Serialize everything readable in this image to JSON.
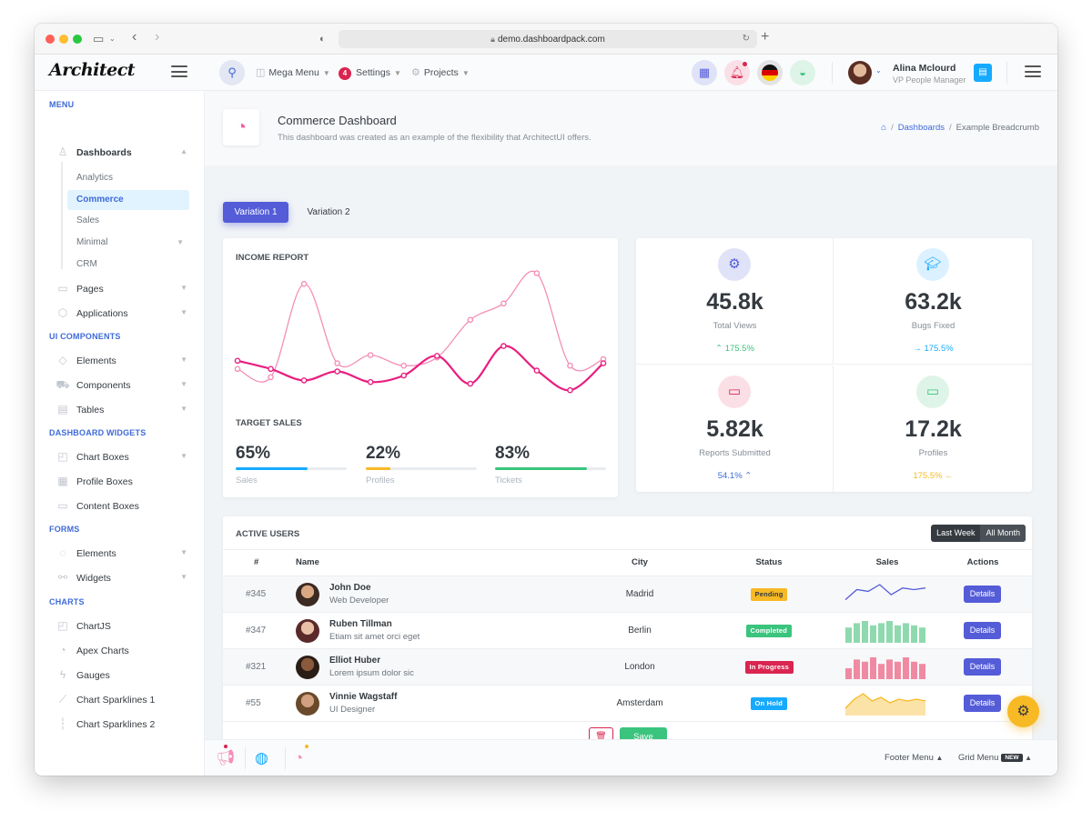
{
  "browser": {
    "url": "demo.dashboardpack.com"
  },
  "header": {
    "logo": "Architect",
    "nav": [
      {
        "label": "Mega Menu"
      },
      {
        "label": "Settings",
        "badge": "4"
      },
      {
        "label": "Projects"
      }
    ],
    "user": {
      "name": "Alina Mclourd",
      "role": "VP People Manager"
    }
  },
  "sidebar": {
    "sections": [
      {
        "heading": "Menu"
      },
      {
        "heading": "UI Components"
      },
      {
        "heading": "Dashboard Widgets"
      },
      {
        "heading": "Forms"
      },
      {
        "heading": "Charts"
      }
    ],
    "dashboards": "Dashboards",
    "sub": [
      "Analytics",
      "Commerce",
      "Sales",
      "Minimal",
      "CRM"
    ],
    "items": {
      "pages": "Pages",
      "applications": "Applications",
      "elements": "Elements",
      "components": "Components",
      "tables": "Tables",
      "chart_boxes": "Chart Boxes",
      "profile_boxes": "Profile Boxes",
      "content_boxes": "Content Boxes",
      "form_elements": "Elements",
      "widgets": "Widgets",
      "chartjs": "ChartJS",
      "apex": "Apex Charts",
      "gauges": "Gauges",
      "sparklines1": "Chart Sparklines 1",
      "sparklines2": "Chart Sparklines 2"
    }
  },
  "page": {
    "title": "Commerce Dashboard",
    "subtitle": "This dashboard was created as an example of the flexibility that ArchitectUI offers.",
    "breadcrumb": [
      "Dashboards",
      "Example Breadcrumb"
    ],
    "tabs": [
      "Variation 1",
      "Variation 2"
    ]
  },
  "income": {
    "title": "Income Report",
    "target_title": "Target Sales",
    "targets": [
      {
        "value": "65%",
        "fill": 0.65,
        "label": "Sales",
        "color": "#16aaff"
      },
      {
        "value": "22%",
        "fill": 0.22,
        "label": "Profiles",
        "color": "#f7b924"
      },
      {
        "value": "83%",
        "fill": 0.83,
        "label": "Tickets",
        "color": "#3ac47d"
      }
    ]
  },
  "chart_data": {
    "type": "line",
    "series": [
      {
        "color": "#f48fb8",
        "values": [
          38,
          28,
          142,
          45,
          55,
          42,
          52,
          98,
          118,
          155,
          42,
          50
        ]
      },
      {
        "color": "#e91e80",
        "values": [
          48,
          38,
          24,
          35,
          22,
          30,
          54,
          20,
          66,
          36,
          12,
          45
        ]
      }
    ],
    "ylim": [
      0,
      160
    ]
  },
  "stats": [
    {
      "value": "45.8k",
      "label": "Total Views",
      "trend": "175.5%",
      "trend_dir": "up",
      "trend_color": "#3ac47d",
      "icon": "gear-icon",
      "icon_bg": "#e0e3f7",
      "icon_color": "#545cd8"
    },
    {
      "value": "63.2k",
      "label": "Bugs Fixed",
      "trend": "175.5%",
      "trend_dir": "right",
      "trend_color": "#16aaff",
      "icon": "graduation-cap-icon",
      "icon_bg": "#dcf1ff",
      "icon_color": "#16aaff"
    },
    {
      "value": "5.82k",
      "label": "Reports Submitted",
      "trend": "54.1%",
      "trend_dir": "up",
      "trend_color": "#3f6ad8",
      "icon": "laptop-icon",
      "icon_bg": "#fbdfe6",
      "icon_color": "#d92550"
    },
    {
      "value": "17.2k",
      "label": "Profiles",
      "trend": "175.5%",
      "trend_dir": "left",
      "trend_color": "#f7b924",
      "icon": "monitor-icon",
      "icon_bg": "#dff4e8",
      "icon_color": "#3ac47d"
    }
  ],
  "users": {
    "title": "Active Users",
    "filters": [
      "Last Week",
      "All Month"
    ],
    "columns": [
      "#",
      "Name",
      "City",
      "Status",
      "Sales",
      "Actions"
    ],
    "rows": [
      {
        "id": "#345",
        "name": "John Doe",
        "desc": "Web Developer",
        "city": "Madrid",
        "status": "Pending",
        "status_color": "#f7b924",
        "status_text_color": "#343a40",
        "spark": "line",
        "spark_color": "#545cd8",
        "spark_values": [
          4,
          10,
          9,
          13,
          7,
          11,
          10,
          11
        ]
      },
      {
        "id": "#347",
        "name": "Ruben Tillman",
        "desc": "Etiam sit amet orci eget",
        "city": "Berlin",
        "status": "Completed",
        "status_color": "#3ac47d",
        "status_text_color": "#ffffff",
        "spark": "bar",
        "spark_color": "#8fd9ae",
        "spark_values": [
          7,
          9,
          10,
          8,
          9,
          10,
          8,
          9,
          8,
          7
        ]
      },
      {
        "id": "#321",
        "name": "Elliot Huber",
        "desc": "Lorem ipsum dolor sic",
        "city": "London",
        "status": "In Progress",
        "status_color": "#d92550",
        "status_text_color": "#ffffff",
        "spark": "bar",
        "spark_color": "#f08aa2",
        "spark_values": [
          5,
          9,
          8,
          10,
          7,
          9,
          8,
          10,
          8,
          7
        ]
      },
      {
        "id": "#55",
        "name": "Vinnie Wagstaff",
        "desc": "UI Designer",
        "city": "Amsterdam",
        "status": "On Hold",
        "status_color": "#16aaff",
        "status_text_color": "#ffffff",
        "spark": "area",
        "spark_color": "#f7b924",
        "spark_values": [
          4,
          9,
          12,
          8,
          10,
          7,
          9,
          8,
          9,
          8
        ]
      }
    ],
    "details_label": "Details",
    "save_label": "Save"
  },
  "footer": {
    "footer_menu": "Footer Menu",
    "grid_menu": "Grid Menu",
    "new_badge": "NEW"
  }
}
